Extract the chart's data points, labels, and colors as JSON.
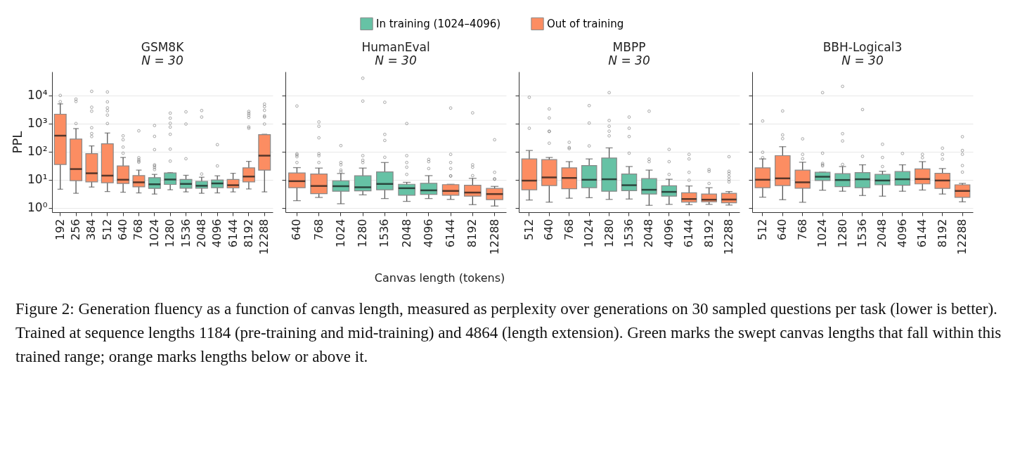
{
  "chart_data": [
    {
      "type": "box",
      "title": "GSM8K",
      "subtitle": "N = 30",
      "ylabel": "PPL",
      "log": true,
      "grid": "y",
      "legend": "top",
      "annotations": [
        "Figure 2: Generation fluency as a function of canvas length, measured as perplexity over generations on 30 sampled questions per task (lower is better). Trained at sequence lengths 1184 (pre-training and mid-training) and 4864 (length extension). Green marks the swept canvas lengths that fall within this trained range; orange marks lengths below or above it."
      ],
      "categories": [
        "192",
        "256",
        "384",
        "512",
        "640",
        "768",
        "1024",
        "1280",
        "1536",
        "2048",
        "4096",
        "6144",
        "8192",
        "12288"
      ],
      "ylim": [
        0.7,
        70000
      ],
      "yticks": [
        {
          "value": 1,
          "label": "10⁰"
        },
        {
          "value": 10,
          "label": "10¹"
        },
        {
          "value": 100,
          "label": "10²"
        },
        {
          "value": 1000,
          "label": "10³"
        },
        {
          "value": 10000,
          "label": "10⁴"
        }
      ],
      "series": [
        {
          "name": "In training (1024–4096)",
          "color": "#66c2a5",
          "boxes": [
            null,
            null,
            null,
            null,
            null,
            null,
            {
              "low": 3.1,
              "q1": 4.9,
              "median": 6.9,
              "q3": 11.9,
              "high": 15.5,
              "outliers": [
                23,
                27,
                31,
                34,
                118,
                350,
                850
              ]
            },
            {
              "low": 4.4,
              "q1": 6.8,
              "median": 10.2,
              "q3": 17.4,
              "high": 18,
              "outliers": [
                46,
                123,
                415,
                750,
                1020,
                1550,
                2350
              ]
            },
            {
              "low": 3.7,
              "q1": 5.0,
              "median": 7.1,
              "q3": 10.2,
              "high": 14.4,
              "outliers": [
                56,
                960,
                2600
              ]
            },
            {
              "low": 3.3,
              "q1": 5.0,
              "median": 6.1,
              "q3": 8.8,
              "high": 12.3,
              "outliers": [
                16,
                1700,
                2900
              ]
            },
            {
              "low": 3.4,
              "q1": 5.2,
              "median": 7.4,
              "q3": 9.8,
              "high": 13.8,
              "outliers": [
                31,
                177
              ]
            },
            null,
            null,
            null
          ]
        },
        {
          "name": "Out of training",
          "color": "#fc8d62",
          "boxes": [
            {
              "low": 4.6,
              "q1": 35,
              "median": 370,
              "q3": 2150,
              "high": 5000,
              "outliers": [
                6000,
                10000
              ]
            },
            {
              "low": 3.3,
              "q1": 9.3,
              "median": 24,
              "q3": 280,
              "high": 660,
              "outliers": [
                1000,
                6100,
                7400
              ]
            },
            {
              "low": 5.5,
              "q1": 8.4,
              "median": 17,
              "q3": 85,
              "high": 160,
              "outliers": [
                345,
                440,
                710,
                2750,
                3800,
                14000
              ]
            },
            {
              "low": 3.8,
              "q1": 7.8,
              "median": 14,
              "q3": 190,
              "high": 460,
              "outliers": [
                1000,
                2000,
                2850,
                3600,
                5900,
                13300
              ]
            },
            {
              "low": 3.6,
              "q1": 7.4,
              "median": 10,
              "q3": 31,
              "high": 62,
              "outliers": [
                88,
                145,
                265,
                365
              ]
            },
            {
              "low": 3.4,
              "q1": 5.6,
              "median": 8.1,
              "q3": 14,
              "high": 22,
              "outliers": [
                42,
                46,
                52,
                61,
                550
              ]
            },
            null,
            null,
            null,
            null,
            null,
            {
              "low": 3.7,
              "q1": 5.1,
              "median": 6.4,
              "q3": 10.2,
              "high": 17
            },
            {
              "low": 4.7,
              "q1": 8.4,
              "median": 13,
              "q3": 26.5,
              "high": 45,
              "outliers": [
                680,
                760,
                1650,
                2000,
                2300,
                2700
              ]
            },
            {
              "low": 3.7,
              "q1": 22,
              "median": 72,
              "q3": 400,
              "high": 415,
              "outliers": [
                960,
                1700,
                1870,
                2950,
                4000,
                4900
              ]
            }
          ]
        }
      ]
    },
    {
      "type": "box",
      "title": "HumanEval",
      "subtitle": "N = 30",
      "xlabel": "Canvas length (tokens)",
      "log": true,
      "grid": "y",
      "tick_labels": "x",
      "categories": [
        "640",
        "768",
        "1024",
        "1280",
        "1536",
        "2048",
        "4096",
        "6144",
        "8192",
        "12288"
      ],
      "ylim": [
        0.7,
        70000
      ],
      "yticks": [
        {
          "value": 1,
          "label": null
        },
        {
          "value": 10,
          "label": null
        },
        {
          "value": 100,
          "label": null
        },
        {
          "value": 1000,
          "label": null
        },
        {
          "value": 10000,
          "label": null
        }
      ],
      "series": [
        {
          "name": "In training (1024–4096)",
          "color": "#66c2a5",
          "boxes": [
            null,
            null,
            {
              "low": 1.4,
              "q1": 3.9,
              "median": 5.9,
              "q3": 9.2,
              "high": 16.7,
              "outliers": [
                19,
                22,
                34,
                41,
                164
              ]
            },
            {
              "low": 2.9,
              "q1": 4.0,
              "median": 5.4,
              "q3": 13.8,
              "high": 26,
              "outliers": [
                41,
                49.5,
                72,
                6300,
                41000
              ]
            },
            {
              "low": 2.14,
              "q1": 4.4,
              "median": 7.1,
              "q3": 19,
              "high": 41,
              "outliers": [
                63,
                250,
                410,
                5700
              ]
            },
            {
              "low": 1.7,
              "q1": 2.8,
              "median": 5.0,
              "q3": 6.9,
              "high": 8.1,
              "outliers": [
                15.5,
                28,
                41,
                72,
                1000
              ]
            },
            {
              "low": 2.14,
              "q1": 3.0,
              "median": 4.2,
              "q3": 7.5,
              "high": 14,
              "outliers": [
                25,
                44,
                53
              ]
            },
            null,
            null,
            null
          ]
        },
        {
          "name": "Out of training",
          "color": "#fc8d62",
          "boxes": [
            {
              "low": 1.8,
              "q1": 5.2,
              "median": 8.9,
              "q3": 17.4,
              "high": 27,
              "outliers": [
                41,
                66,
                76,
                84,
                4200
              ]
            },
            {
              "low": 2.35,
              "q1": 3.2,
              "median": 6.0,
              "q3": 16,
              "high": 26,
              "outliers": [
                41,
                72,
                84,
                310,
                800,
                1140
              ]
            },
            null,
            null,
            null,
            null,
            null,
            {
              "low": 2.0,
              "q1": 2.8,
              "median": 4.0,
              "q3": 6.7,
              "high": 6.9,
              "outliers": [
                13.5,
                13.8,
                25,
                41,
                80,
                3560
              ]
            },
            {
              "low": 1.3,
              "q1": 2.6,
              "median": 3.5,
              "q3": 6.4,
              "high": 11.2,
              "outliers": [
                14,
                28,
                34,
                2400
              ]
            },
            {
              "low": 1.16,
              "q1": 1.95,
              "median": 3.1,
              "q3": 4.9,
              "high": 5.8,
              "outliers": [
                10.4,
                10.8,
                18.4,
                265
              ]
            }
          ]
        }
      ]
    },
    {
      "type": "box",
      "title": "MBPP",
      "subtitle": "N = 30",
      "log": true,
      "grid": "y",
      "tick_labels": "x",
      "categories": [
        "512",
        "640",
        "768",
        "1024",
        "1280",
        "1536",
        "2048",
        "4096",
        "6144",
        "8192",
        "12288"
      ],
      "ylim": [
        0.7,
        70000
      ],
      "yticks": [
        {
          "value": 1,
          "label": null
        },
        {
          "value": 10,
          "label": null
        },
        {
          "value": 100,
          "label": null
        },
        {
          "value": 1000,
          "label": null
        },
        {
          "value": 10000,
          "label": null
        }
      ],
      "series": [
        {
          "name": "In training (1024–4096)",
          "color": "#66c2a5",
          "boxes": [
            null,
            null,
            null,
            {
              "low": 2.3,
              "q1": 5.2,
              "median": 10,
              "q3": 32,
              "high": 55,
              "outliers": [
                160,
                1040,
                4350
              ]
            },
            {
              "low": 2.0,
              "q1": 3.9,
              "median": 10.4,
              "q3": 59,
              "high": 136,
              "outliers": [
                365,
                535,
                800,
                1280,
                12600
              ]
            },
            {
              "low": 2.06,
              "q1": 4.1,
              "median": 6.4,
              "q3": 16,
              "high": 29.5,
              "outliers": [
                88,
                345,
                680,
                1700
              ]
            },
            {
              "low": 1.23,
              "q1": 3.1,
              "median": 4.4,
              "q3": 11,
              "high": 22,
              "outliers": [
                44,
                54,
                2750
              ]
            },
            {
              "low": 1.33,
              "q1": 2.6,
              "median": 3.7,
              "q3": 6.1,
              "high": 10.4,
              "outliers": [
                15.5,
                44,
                120
              ]
            },
            null,
            null,
            null
          ]
        },
        {
          "name": "Out of training",
          "color": "#fc8d62",
          "boxes": [
            {
              "low": 1.9,
              "q1": 4.4,
              "median": 9.3,
              "q3": 55,
              "high": 110,
              "outliers": [
                680,
                8600
              ]
            },
            {
              "low": 1.6,
              "q1": 6.2,
              "median": 12.1,
              "q3": 52,
              "high": 62,
              "outliers": [
                200,
                520,
                535,
                1580,
                3300
              ]
            },
            {
              "low": 2.2,
              "q1": 4.8,
              "median": 11.6,
              "q3": 26.5,
              "high": 44,
              "outliers": [
                128,
                140,
                215
              ]
            },
            null,
            null,
            null,
            null,
            null,
            {
              "low": 1.3,
              "q1": 1.6,
              "median": 2.06,
              "q3": 3.45,
              "high": 6.0,
              "outliers": [
                9.6,
                18.4,
                55,
                80
              ]
            },
            {
              "low": 1.33,
              "q1": 1.64,
              "median": 1.95,
              "q3": 3.1,
              "high": 5.2,
              "outliers": [
                7.4,
                19.9,
                23
              ]
            },
            {
              "low": 1.26,
              "q1": 1.52,
              "median": 1.98,
              "q3": 3.3,
              "high": 3.8,
              "outliers": [
                8.4,
                10.2,
                13,
                16.7,
                20,
                66
              ]
            }
          ]
        }
      ]
    },
    {
      "type": "box",
      "title": "BBH-Logical3",
      "subtitle": "N = 30",
      "log": true,
      "grid": "y",
      "tick_labels": "x",
      "categories": [
        "512",
        "640",
        "768",
        "1024",
        "1280",
        "1536",
        "2048",
        "4096",
        "6144",
        "8192",
        "12288"
      ],
      "ylim": [
        0.7,
        70000
      ],
      "yticks": [
        {
          "value": 1,
          "label": null
        },
        {
          "value": 10,
          "label": null
        },
        {
          "value": 100,
          "label": null
        },
        {
          "value": 1000,
          "label": null
        },
        {
          "value": 10000,
          "label": null
        }
      ],
      "series": [
        {
          "name": "In training (1024–4096)",
          "color": "#66c2a5",
          "boxes": [
            null,
            null,
            null,
            {
              "low": 4.25,
              "q1": 9.4,
              "median": 12.8,
              "q3": 18.4,
              "high": 18.7,
              "outliers": [
                31,
                34,
                38,
                88,
                12600
              ]
            },
            {
              "low": 3.9,
              "q1": 5.65,
              "median": 9.8,
              "q3": 16.4,
              "high": 29.5,
              "outliers": [
                35,
                240,
                435,
                21000
              ]
            },
            {
              "low": 2.75,
              "q1": 5.2,
              "median": 10.4,
              "q3": 18,
              "high": 34,
              "outliers": [
                68,
                3140
              ]
            },
            {
              "low": 2.6,
              "q1": 6.6,
              "median": 9.4,
              "q3": 15.5,
              "high": 20,
              "outliers": [
                29.5,
                62,
                183
              ]
            },
            {
              "low": 3.9,
              "q1": 6.4,
              "median": 10.4,
              "q3": 19.5,
              "high": 34,
              "outliers": [
                86
              ]
            },
            null,
            null,
            null
          ]
        },
        {
          "name": "Out of training",
          "color": "#fc8d62",
          "boxes": [
            {
              "low": 2.4,
              "q1": 5.2,
              "median": 10,
              "q3": 26.5,
              "high": 55,
              "outliers": [
                61,
                95,
                1230
              ]
            },
            {
              "low": 1.95,
              "q1": 6.2,
              "median": 11.2,
              "q3": 72,
              "high": 150,
              "outliers": [
                290,
                395,
                2800
              ]
            },
            {
              "low": 1.58,
              "q1": 5.0,
              "median": 8.1,
              "q3": 22,
              "high": 42,
              "outliers": [
                56,
                80,
                285
              ]
            },
            null,
            null,
            null,
            null,
            null,
            {
              "low": 4.3,
              "q1": 7.1,
              "median": 10.6,
              "q3": 24.4,
              "high": 44,
              "outliers": [
                61,
                80
              ]
            },
            {
              "low": 3.1,
              "q1": 4.9,
              "median": 9.4,
              "q3": 17,
              "high": 25,
              "outliers": [
                54,
                80,
                133
              ]
            },
            {
              "low": 1.64,
              "q1": 2.35,
              "median": 4.0,
              "q3": 6.6,
              "high": 7.4,
              "outliers": [
                18.7,
                32,
                81,
                110,
                340
              ]
            }
          ]
        }
      ]
    }
  ]
}
